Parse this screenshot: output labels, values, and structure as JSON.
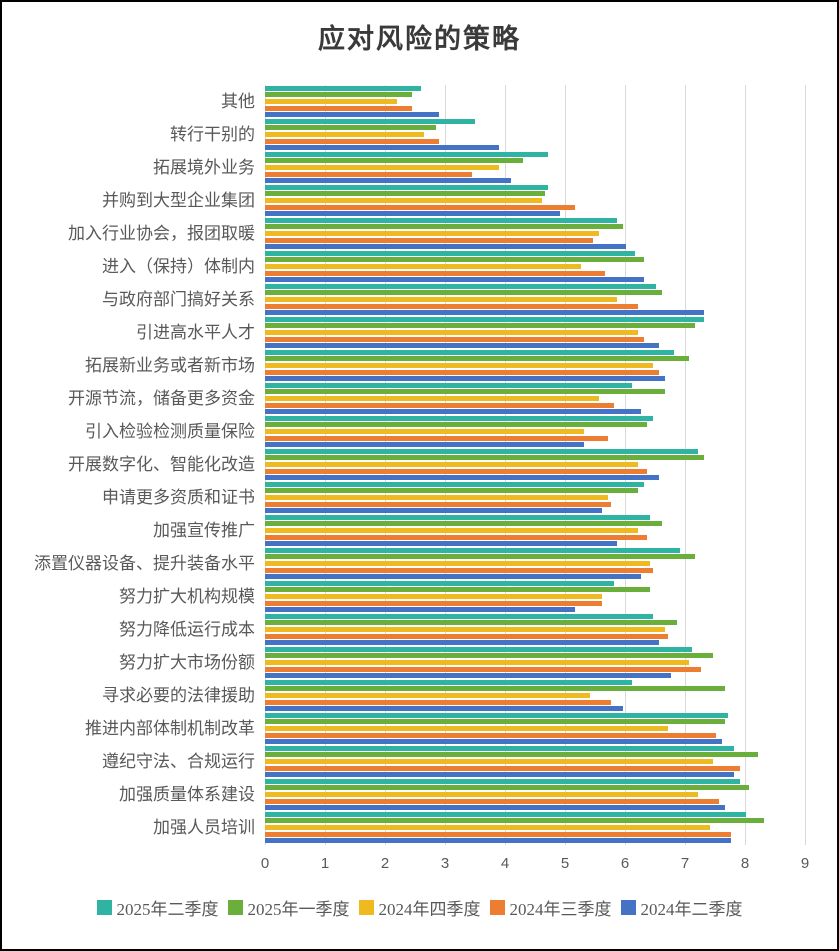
{
  "chart_data": {
    "type": "bar",
    "orientation": "horizontal",
    "title": "应对风险的策略",
    "xlabel": "",
    "ylabel": "",
    "xlim": [
      0,
      9
    ],
    "x_ticks": [
      "0",
      "1",
      "2",
      "3",
      "4",
      "5",
      "6",
      "7",
      "8",
      "9"
    ],
    "grid": true,
    "legend_position": "bottom",
    "gridline_color": "#d9d9d9",
    "text_color": "#595959",
    "categories": [
      "其他",
      "转行干别的",
      "拓展境外业务",
      "并购到大型企业集团",
      "加入行业协会，报团取暖",
      "进入（保持）体制内",
      "与政府部门搞好关系",
      "引进高水平人才",
      "拓展新业务或者新市场",
      "开源节流，储备更多资金",
      "引入检验检测质量保险",
      "开展数字化、智能化改造",
      "申请更多资质和证书",
      "加强宣传推广",
      "添置仪器设备、提升装备水平",
      "努力扩大机构规模",
      "努力降低运行成本",
      "努力扩大市场份额",
      "寻求必要的法律援助",
      "推进内部体制机制改革",
      "遵纪守法、合规运行",
      "加强质量体系建设",
      "加强人员培训"
    ],
    "series": [
      {
        "name": "2025年二季度",
        "color": "#2fb3a3",
        "values": [
          2.6,
          3.5,
          4.7,
          4.7,
          5.85,
          6.15,
          6.5,
          7.3,
          6.8,
          6.1,
          6.45,
          7.2,
          6.3,
          6.4,
          6.9,
          5.8,
          6.45,
          7.1,
          6.1,
          7.7,
          7.8,
          7.9,
          8.0
        ]
      },
      {
        "name": "2025年一季度",
        "color": "#6aae3b",
        "values": [
          2.45,
          2.85,
          4.3,
          4.65,
          5.95,
          6.3,
          6.6,
          7.15,
          7.05,
          6.65,
          6.35,
          7.3,
          6.2,
          6.6,
          7.15,
          6.4,
          6.85,
          7.45,
          7.65,
          7.65,
          8.2,
          8.05,
          8.3
        ]
      },
      {
        "name": "2024年四季度",
        "color": "#efb920",
        "values": [
          2.2,
          2.65,
          3.9,
          4.6,
          5.55,
          5.25,
          5.85,
          6.2,
          6.45,
          5.55,
          5.3,
          6.2,
          5.7,
          6.2,
          6.4,
          5.6,
          6.65,
          7.05,
          5.4,
          6.7,
          7.45,
          7.2,
          7.4
        ]
      },
      {
        "name": "2024年三季度",
        "color": "#ed7d31",
        "values": [
          2.45,
          2.9,
          3.45,
          5.15,
          5.45,
          5.65,
          6.2,
          6.3,
          6.55,
          5.8,
          5.7,
          6.35,
          5.75,
          6.35,
          6.45,
          5.6,
          6.7,
          7.25,
          5.75,
          7.5,
          7.9,
          7.55,
          7.75
        ]
      },
      {
        "name": "2024年二季度",
        "color": "#4472c4",
        "values": [
          2.9,
          3.9,
          4.1,
          4.9,
          6.0,
          6.3,
          7.3,
          6.55,
          6.65,
          6.25,
          5.3,
          6.55,
          5.6,
          5.85,
          6.25,
          5.15,
          6.55,
          6.75,
          5.95,
          7.6,
          7.8,
          7.65,
          7.75
        ]
      }
    ]
  }
}
